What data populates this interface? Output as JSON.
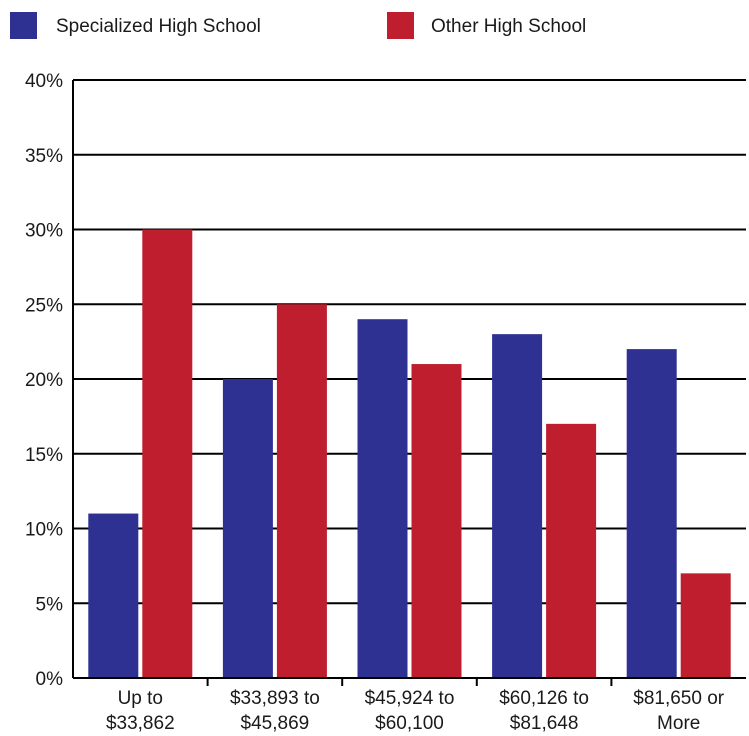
{
  "chart_data": {
    "type": "bar",
    "categories": [
      [
        "Up to",
        "$33,862"
      ],
      [
        "$33,893 to",
        "$45,869"
      ],
      [
        "$45,924 to",
        "$60,100"
      ],
      [
        "$60,126 to",
        "$81,648"
      ],
      [
        "$81,650 or",
        "More"
      ]
    ],
    "series": [
      {
        "name": "Specialized High School",
        "color": "#2e3192",
        "values": [
          11,
          20,
          24,
          23,
          22
        ]
      },
      {
        "name": "Other High School",
        "color": "#be1e2d",
        "values": [
          30,
          25,
          21,
          17,
          7
        ]
      }
    ],
    "y_ticks": [
      "0%",
      "5%",
      "10%",
      "15%",
      "20%",
      "25%",
      "30%",
      "35%",
      "40%"
    ],
    "ylim": [
      0,
      40
    ],
    "ytick_step": 5,
    "grid": true,
    "legend_position": "top"
  }
}
